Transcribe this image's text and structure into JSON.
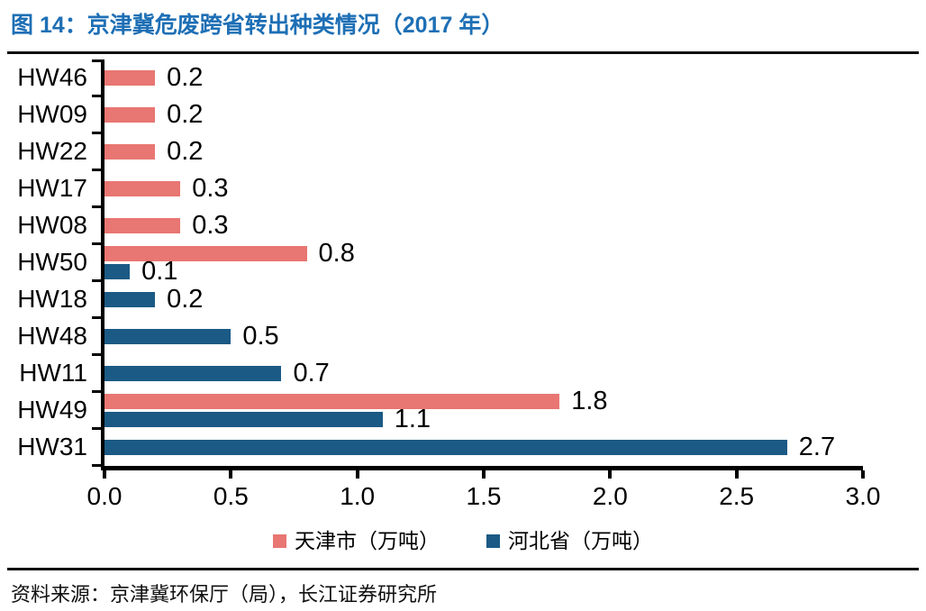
{
  "header": {
    "title": "图 14：京津冀危废跨省转出种类情况（2017 年）",
    "title_color": "#1E6FB5"
  },
  "chart_data": {
    "type": "bar",
    "orientation": "horizontal",
    "title": "京津冀危废跨省转出种类情况（2017 年）",
    "categories": [
      "HW46",
      "HW09",
      "HW22",
      "HW17",
      "HW08",
      "HW50",
      "HW18",
      "HW48",
      "HW11",
      "HW49",
      "HW31"
    ],
    "series": [
      {
        "name": "天津市（万吨）",
        "color": "#E87672",
        "values": [
          0.2,
          0.2,
          0.2,
          0.3,
          0.3,
          0.8,
          null,
          null,
          null,
          1.8,
          null
        ]
      },
      {
        "name": "河北省（万吨）",
        "color": "#1B5A85",
        "values": [
          null,
          null,
          null,
          null,
          null,
          0.1,
          0.2,
          0.5,
          0.7,
          1.1,
          2.7
        ]
      }
    ],
    "xlim": [
      0,
      3.0
    ],
    "x_ticks": [
      "0.0",
      "0.5",
      "1.0",
      "1.5",
      "2.0",
      "2.5",
      "3.0"
    ],
    "grid": false,
    "legend_position": "bottom",
    "axis_color": "#000000",
    "value_label_color": "#000000"
  },
  "footer": {
    "source": "资料来源：京津冀环保厅（局），长江证券研究所"
  }
}
